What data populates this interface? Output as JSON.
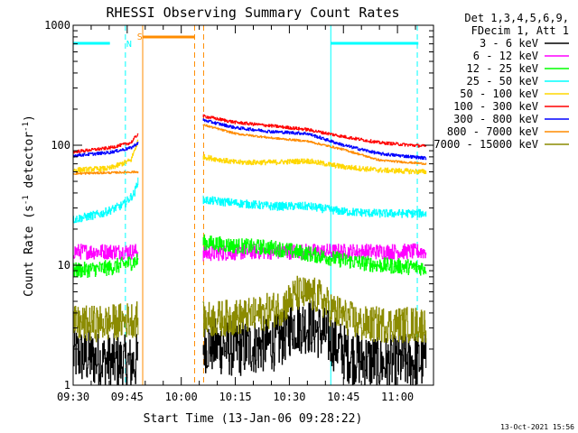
{
  "chart_data": {
    "type": "line",
    "title": "RHESSI Observing Summary Count Rates",
    "xlabel": "Start Time (13-Jan-06 09:28:22)",
    "ylabel_parts": [
      "Count Rate (s",
      "-1",
      " detector",
      "-1",
      ")"
    ],
    "y_scale": "log",
    "ylim": [
      1,
      1000
    ],
    "xlim_minutes": [
      570,
      670
    ],
    "x_ticks": [
      {
        "t": 570,
        "label": "09:30"
      },
      {
        "t": 585,
        "label": "09:45"
      },
      {
        "t": 600,
        "label": "10:00"
      },
      {
        "t": 615,
        "label": "10:15"
      },
      {
        "t": 630,
        "label": "10:30"
      },
      {
        "t": 645,
        "label": "10:45"
      },
      {
        "t": 660,
        "label": "11:00"
      }
    ],
    "y_ticks": [
      {
        "v": 1,
        "label": "1"
      },
      {
        "v": 10,
        "label": "10"
      },
      {
        "v": 100,
        "label": "100"
      },
      {
        "v": 1000,
        "label": "1000"
      }
    ],
    "legend_header": [
      "Det 1,3,4,5,6,9,",
      "FDecim 1, Att 1"
    ],
    "gap_minutes": [
      588,
      606
    ],
    "series": [
      {
        "name": "3 - 6 keV",
        "color": "#000000",
        "noise": 0.55,
        "seg1": [
          [
            570,
            1.8
          ],
          [
            578,
            1.6
          ],
          [
            586,
            1.5
          ],
          [
            588,
            1.6
          ]
        ],
        "seg2": [
          [
            606,
            2.2
          ],
          [
            615,
            2.0
          ],
          [
            620,
            2.1
          ],
          [
            627,
            2.3
          ],
          [
            631,
            3.2
          ],
          [
            636,
            3.1
          ],
          [
            640,
            2.6
          ],
          [
            646,
            1.8
          ],
          [
            655,
            1.5
          ],
          [
            668,
            1.6
          ]
        ]
      },
      {
        "name": "6 - 12 keV",
        "color": "#ff00ff",
        "noise": 0.15,
        "seg1": [
          [
            570,
            13
          ],
          [
            580,
            13
          ],
          [
            588,
            13
          ]
        ],
        "seg2": [
          [
            606,
            12.5
          ],
          [
            620,
            13
          ],
          [
            640,
            13
          ],
          [
            668,
            13
          ]
        ]
      },
      {
        "name": "12 - 25 keV",
        "color": "#00ff00",
        "noise": 0.15,
        "seg1": [
          [
            570,
            9
          ],
          [
            580,
            9.5
          ],
          [
            586,
            10.5
          ],
          [
            588,
            11
          ]
        ],
        "seg2": [
          [
            606,
            15.5
          ],
          [
            615,
            14.5
          ],
          [
            625,
            14
          ],
          [
            635,
            12.5
          ],
          [
            645,
            11
          ],
          [
            655,
            10
          ],
          [
            668,
            9.5
          ]
        ]
      },
      {
        "name": "25 - 50 keV",
        "color": "#00ffff",
        "noise": 0.08,
        "seg1": [
          [
            570,
            24
          ],
          [
            578,
            27
          ],
          [
            584,
            32
          ],
          [
            587,
            40
          ],
          [
            588,
            52
          ]
        ],
        "seg2": [
          [
            606,
            35
          ],
          [
            615,
            33
          ],
          [
            625,
            31
          ],
          [
            635,
            31
          ],
          [
            645,
            28
          ],
          [
            655,
            27
          ],
          [
            668,
            27
          ]
        ]
      },
      {
        "name": "50 - 100 keV",
        "color": "#ffd700",
        "noise": 0.05,
        "seg1": [
          [
            570,
            62
          ],
          [
            580,
            64
          ],
          [
            586,
            75
          ],
          [
            588,
            110
          ]
        ],
        "seg2": [
          [
            606,
            80
          ],
          [
            615,
            72
          ],
          [
            625,
            72
          ],
          [
            635,
            74
          ],
          [
            645,
            66
          ],
          [
            655,
            62
          ],
          [
            668,
            60
          ]
        ]
      },
      {
        "name": "100 - 300 keV",
        "color": "#ff0000",
        "noise": 0.03,
        "seg1": [
          [
            570,
            88
          ],
          [
            580,
            95
          ],
          [
            586,
            105
          ],
          [
            588,
            125
          ]
        ],
        "seg2": [
          [
            606,
            175
          ],
          [
            615,
            155
          ],
          [
            625,
            145
          ],
          [
            635,
            135
          ],
          [
            645,
            118
          ],
          [
            655,
            105
          ],
          [
            668,
            98
          ]
        ]
      },
      {
        "name": "300 - 800 keV",
        "color": "#0000ff",
        "noise": 0.03,
        "seg1": [
          [
            570,
            82
          ],
          [
            580,
            87
          ],
          [
            586,
            95
          ],
          [
            588,
            105
          ]
        ],
        "seg2": [
          [
            606,
            162
          ],
          [
            615,
            140
          ],
          [
            625,
            130
          ],
          [
            635,
            125
          ],
          [
            645,
            100
          ],
          [
            655,
            85
          ],
          [
            668,
            78
          ]
        ]
      },
      {
        "name": "800 - 7000 keV",
        "color": "#ff8c00",
        "noise": 0.02,
        "seg1": [
          [
            570,
            58
          ],
          [
            580,
            59
          ],
          [
            588,
            60
          ]
        ],
        "seg2": [
          [
            606,
            148
          ],
          [
            615,
            125
          ],
          [
            625,
            115
          ],
          [
            635,
            108
          ],
          [
            645,
            92
          ],
          [
            655,
            75
          ],
          [
            668,
            70
          ]
        ]
      },
      {
        "name": "7000 - 15000 keV",
        "color": "#8b8b00",
        "noise": 0.35,
        "seg1": [
          [
            570,
            3.2
          ],
          [
            580,
            3.3
          ],
          [
            588,
            3.6
          ]
        ],
        "seg2": [
          [
            606,
            3.5
          ],
          [
            620,
            3.8
          ],
          [
            628,
            4.5
          ],
          [
            632,
            5.8
          ],
          [
            638,
            5.5
          ],
          [
            642,
            4.2
          ],
          [
            650,
            3.2
          ],
          [
            668,
            3.2
          ]
        ]
      }
    ],
    "annotations": {
      "cyan_verticals": [
        570,
        584.5,
        641.5,
        665.5
      ],
      "orange_solid_vertical": 589.3,
      "orange_dashed_verticals": [
        603.7,
        606.2
      ],
      "cyan_top_bars": [
        [
          570,
          580.2
        ],
        [
          641.5,
          665.8
        ]
      ],
      "orange_top_bar": [
        589.3,
        603.7
      ],
      "markers": [
        {
          "label": "N",
          "t": 585.5,
          "color": "#00ffff"
        },
        {
          "label": "S",
          "t": 588.5,
          "color": "#ff8c00"
        }
      ]
    }
  },
  "footer_timestamp": "13-Oct-2021 15:56"
}
